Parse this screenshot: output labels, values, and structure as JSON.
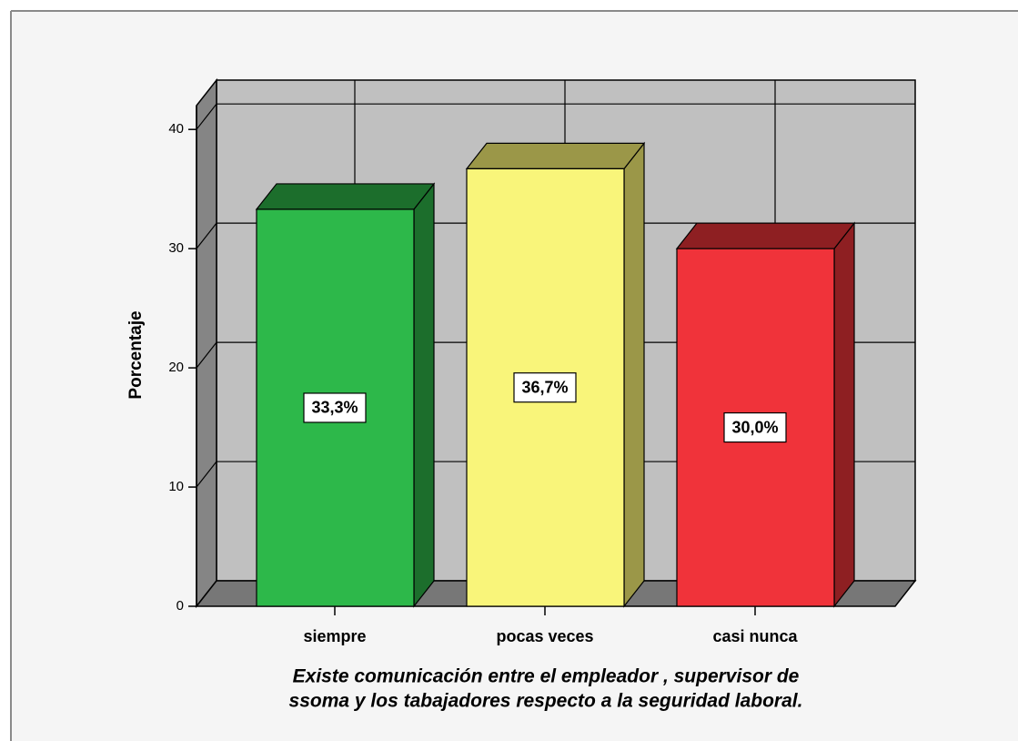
{
  "chart_data": {
    "type": "bar3d",
    "categories": [
      "siempre",
      "pocas veces",
      "casi nunca"
    ],
    "values": [
      33.3,
      36.7,
      30.0
    ],
    "value_labels": [
      "33,3%",
      "36,7%",
      "30,0%"
    ],
    "colors": [
      "#2db84a",
      "#f9f57a",
      "#f0333a"
    ],
    "side_colors": [
      "#1c6e2c",
      "#9b9748",
      "#8e1f22"
    ],
    "y_label": "Porcentaje",
    "x_label": [
      "Existe comunicación entre el empleador , supervisor de",
      "ssoma y los tabajadores respecto a la seguridad laboral."
    ],
    "ylim": [
      0,
      42
    ],
    "yticks": [
      0,
      10,
      20,
      30,
      40
    ],
    "grid": true
  }
}
